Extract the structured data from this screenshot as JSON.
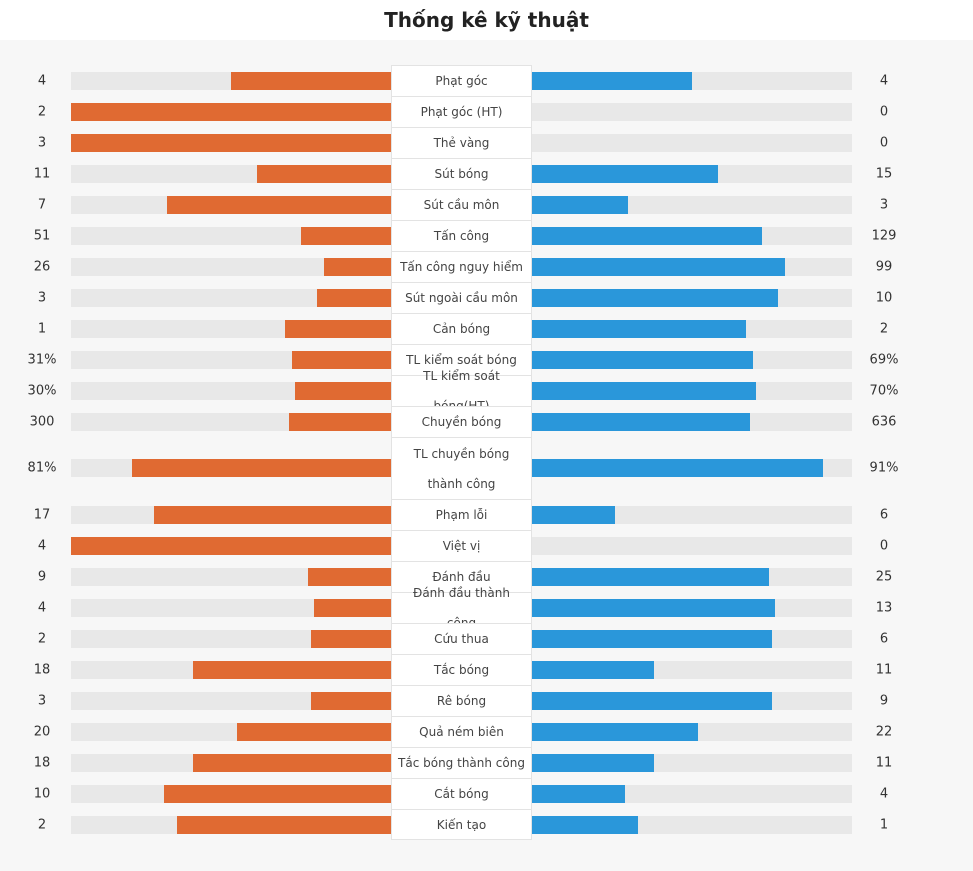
{
  "title": "Thống kê kỹ thuật",
  "colors": {
    "home": "#e06a32",
    "away": "#2a97da",
    "track": "#e8e8e8"
  },
  "chart_data": {
    "type": "bar",
    "orientation": "diverging-horizontal",
    "rows": [
      {
        "label": "Phạt góc",
        "home": "4",
        "away": "4",
        "home_frac": 0.5,
        "away_frac": 0.5
      },
      {
        "label": "Phạt góc (HT)",
        "home": "2",
        "away": "0",
        "home_frac": 1.0,
        "away_frac": 0.0
      },
      {
        "label": "Thẻ vàng",
        "home": "3",
        "away": "0",
        "home_frac": 1.0,
        "away_frac": 0.0
      },
      {
        "label": "Sút bóng",
        "home": "11",
        "away": "15",
        "home_frac": 0.42,
        "away_frac": 0.58
      },
      {
        "label": "Sút cầu môn",
        "home": "7",
        "away": "3",
        "home_frac": 0.7,
        "away_frac": 0.3
      },
      {
        "label": "Tấn công",
        "home": "51",
        "away": "129",
        "home_frac": 0.28,
        "away_frac": 0.72
      },
      {
        "label": "Tấn công nguy hiểm",
        "home": "26",
        "away": "99",
        "home_frac": 0.21,
        "away_frac": 0.79
      },
      {
        "label": "Sút ngoài cầu môn",
        "home": "3",
        "away": "10",
        "home_frac": 0.23,
        "away_frac": 0.77
      },
      {
        "label": "Cản bóng",
        "home": "1",
        "away": "2",
        "home_frac": 0.33,
        "away_frac": 0.67
      },
      {
        "label": "TL kiểm soát bóng",
        "home": "31%",
        "away": "69%",
        "home_frac": 0.31,
        "away_frac": 0.69
      },
      {
        "label": "TL kiểm soát bóng(HT)",
        "home": "30%",
        "away": "70%",
        "home_frac": 0.3,
        "away_frac": 0.7
      },
      {
        "label": "Chuyền bóng",
        "home": "300",
        "away": "636",
        "home_frac": 0.32,
        "away_frac": 0.68
      },
      {
        "label": "TL chuyền bóng thành công",
        "home": "81%",
        "away": "91%",
        "home_frac": 0.81,
        "away_frac": 0.91,
        "tall": true
      },
      {
        "label": "Phạm lỗi",
        "home": "17",
        "away": "6",
        "home_frac": 0.74,
        "away_frac": 0.26
      },
      {
        "label": "Việt vị",
        "home": "4",
        "away": "0",
        "home_frac": 1.0,
        "away_frac": 0.0
      },
      {
        "label": "Đánh đầu",
        "home": "9",
        "away": "25",
        "home_frac": 0.26,
        "away_frac": 0.74
      },
      {
        "label": "Đánh đầu thành công",
        "home": "4",
        "away": "13",
        "home_frac": 0.24,
        "away_frac": 0.76
      },
      {
        "label": "Cứu thua",
        "home": "2",
        "away": "6",
        "home_frac": 0.25,
        "away_frac": 0.75
      },
      {
        "label": "Tắc bóng",
        "home": "18",
        "away": "11",
        "home_frac": 0.62,
        "away_frac": 0.38
      },
      {
        "label": "Rê bóng",
        "home": "3",
        "away": "9",
        "home_frac": 0.25,
        "away_frac": 0.75
      },
      {
        "label": "Quả ném biên",
        "home": "20",
        "away": "22",
        "home_frac": 0.48,
        "away_frac": 0.52
      },
      {
        "label": "Tắc bóng thành công",
        "home": "18",
        "away": "11",
        "home_frac": 0.62,
        "away_frac": 0.38
      },
      {
        "label": "Cắt bóng",
        "home": "10",
        "away": "4",
        "home_frac": 0.71,
        "away_frac": 0.29
      },
      {
        "label": "Kiến tạo",
        "home": "2",
        "away": "1",
        "home_frac": 0.67,
        "away_frac": 0.33
      }
    ]
  }
}
